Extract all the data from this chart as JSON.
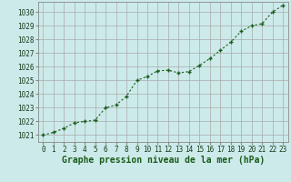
{
  "x": [
    0,
    1,
    2,
    3,
    4,
    5,
    6,
    7,
    8,
    9,
    10,
    11,
    12,
    13,
    14,
    15,
    16,
    17,
    18,
    19,
    20,
    21,
    22,
    23
  ],
  "y": [
    1021.0,
    1021.2,
    1021.5,
    1021.9,
    1022.0,
    1022.1,
    1023.0,
    1023.2,
    1023.85,
    1025.0,
    1025.3,
    1025.7,
    1025.75,
    1025.55,
    1025.65,
    1026.1,
    1026.6,
    1027.2,
    1027.8,
    1028.6,
    1029.0,
    1029.15,
    1030.0,
    1030.5
  ],
  "line_color": "#1a5c1a",
  "marker": "+",
  "markersize": 3.5,
  "markeredgewidth": 1.0,
  "linewidth": 0.8,
  "bg_color": "#cceaea",
  "grid_color": "#aaaaaa",
  "xlabel": "Graphe pression niveau de la mer (hPa)",
  "xlabel_fontsize": 7,
  "xlim": [
    -0.5,
    23.5
  ],
  "ylim": [
    1020.5,
    1030.75
  ],
  "yticks": [
    1021,
    1022,
    1023,
    1024,
    1025,
    1026,
    1027,
    1028,
    1029,
    1030
  ],
  "xticks": [
    0,
    1,
    2,
    3,
    4,
    5,
    6,
    7,
    8,
    9,
    10,
    11,
    12,
    13,
    14,
    15,
    16,
    17,
    18,
    19,
    20,
    21,
    22,
    23
  ],
  "tick_fontsize": 5.5,
  "ytick_fontsize": 5.5,
  "title_color": "#1a5c1a"
}
